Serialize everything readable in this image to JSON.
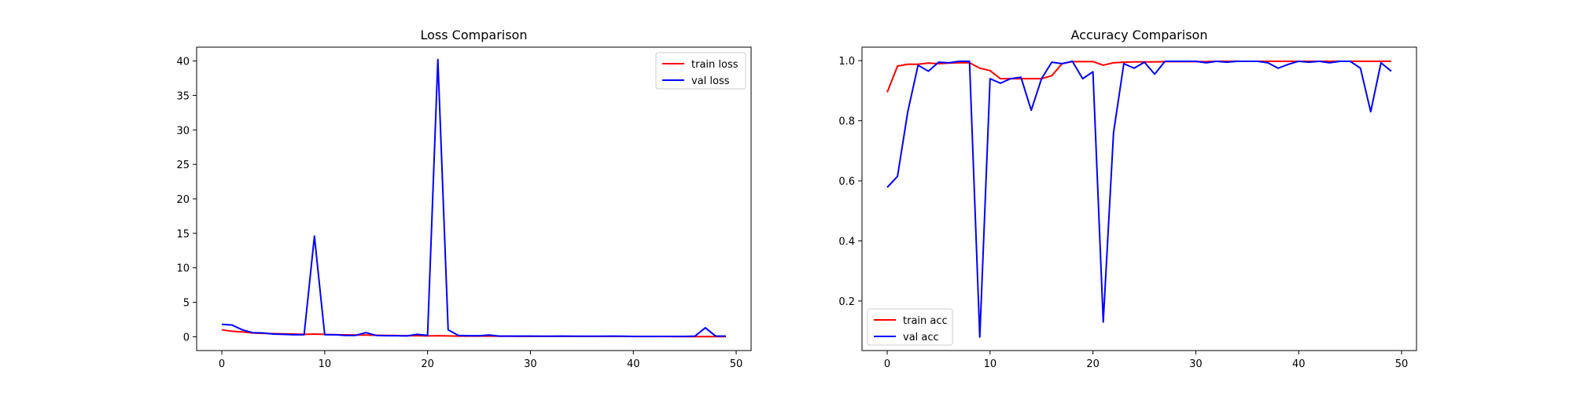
{
  "colors": {
    "train": "#ff0000",
    "val": "#0000ff",
    "axis": "#000000",
    "legend_border": "#cccccc"
  },
  "chart_data": [
    {
      "type": "line",
      "title": "Loss Comparison",
      "xlabel": "",
      "ylabel": "",
      "xlim": [
        -2.45,
        51.45
      ],
      "ylim": [
        -2.0,
        42.0
      ],
      "xticks": [
        0,
        10,
        20,
        30,
        40,
        50
      ],
      "yticks": [
        0,
        5,
        10,
        15,
        20,
        25,
        30,
        35,
        40
      ],
      "grid": false,
      "legend": "top-right",
      "x": [
        0,
        1,
        2,
        3,
        4,
        5,
        6,
        7,
        8,
        9,
        10,
        11,
        12,
        13,
        14,
        15,
        16,
        17,
        18,
        19,
        20,
        21,
        22,
        23,
        24,
        25,
        26,
        27,
        28,
        29,
        30,
        31,
        32,
        33,
        34,
        35,
        36,
        37,
        38,
        39,
        40,
        41,
        42,
        43,
        44,
        45,
        46,
        47,
        48,
        49
      ],
      "series": [
        {
          "name": "train loss",
          "color": "#ff0000",
          "values": [
            1.0,
            0.8,
            0.7,
            0.55,
            0.5,
            0.45,
            0.42,
            0.4,
            0.35,
            0.4,
            0.35,
            0.3,
            0.28,
            0.25,
            0.25,
            0.22,
            0.2,
            0.18,
            0.15,
            0.15,
            0.12,
            0.15,
            0.12,
            0.1,
            0.1,
            0.1,
            0.1,
            0.08,
            0.08,
            0.07,
            0.07,
            0.07,
            0.06,
            0.06,
            0.06,
            0.05,
            0.05,
            0.05,
            0.05,
            0.05,
            0.04,
            0.04,
            0.04,
            0.04,
            0.03,
            0.03,
            0.03,
            0.03,
            0.03,
            0.03
          ]
        },
        {
          "name": "val loss",
          "color": "#0000ff",
          "values": [
            1.8,
            1.7,
            1.0,
            0.6,
            0.55,
            0.4,
            0.35,
            0.3,
            0.3,
            14.6,
            0.3,
            0.3,
            0.2,
            0.2,
            0.6,
            0.2,
            0.15,
            0.15,
            0.12,
            0.35,
            0.2,
            40.2,
            1.0,
            0.2,
            0.15,
            0.15,
            0.25,
            0.1,
            0.1,
            0.1,
            0.1,
            0.08,
            0.08,
            0.1,
            0.08,
            0.08,
            0.08,
            0.08,
            0.1,
            0.08,
            0.05,
            0.05,
            0.05,
            0.05,
            0.05,
            0.05,
            0.1,
            1.3,
            0.1,
            0.1
          ]
        }
      ]
    },
    {
      "type": "line",
      "title": "Accuracy Comparison",
      "xlabel": "",
      "ylabel": "",
      "xlim": [
        -2.45,
        51.45
      ],
      "ylim": [
        0.035,
        1.045
      ],
      "xticks": [
        0,
        10,
        20,
        30,
        40,
        50
      ],
      "yticks": [
        0.2,
        0.4,
        0.6,
        0.8,
        1.0
      ],
      "ytick_labels": [
        "0.2",
        "0.4",
        "0.6",
        "0.8",
        "1.0"
      ],
      "grid": false,
      "legend": "bottom-left",
      "x": [
        0,
        1,
        2,
        3,
        4,
        5,
        6,
        7,
        8,
        9,
        10,
        11,
        12,
        13,
        14,
        15,
        16,
        17,
        18,
        19,
        20,
        21,
        22,
        23,
        24,
        25,
        26,
        27,
        28,
        29,
        30,
        31,
        32,
        33,
        34,
        35,
        36,
        37,
        38,
        39,
        40,
        41,
        42,
        43,
        44,
        45,
        46,
        47,
        48,
        49
      ],
      "series": [
        {
          "name": "train acc",
          "color": "#ff0000",
          "values": [
            0.895,
            0.982,
            0.988,
            0.988,
            0.992,
            0.99,
            0.992,
            0.993,
            0.993,
            0.975,
            0.967,
            0.94,
            0.94,
            0.94,
            0.94,
            0.94,
            0.95,
            0.99,
            0.997,
            0.997,
            0.997,
            0.985,
            0.993,
            0.995,
            0.996,
            0.996,
            0.996,
            0.997,
            0.997,
            0.997,
            0.997,
            0.997,
            0.998,
            0.998,
            0.998,
            0.998,
            0.998,
            0.998,
            0.998,
            0.998,
            0.998,
            0.998,
            0.998,
            0.998,
            0.998,
            0.998,
            0.998,
            0.998,
            0.998,
            0.998
          ]
        },
        {
          "name": "val acc",
          "color": "#0000ff",
          "values": [
            0.578,
            0.615,
            0.83,
            0.985,
            0.965,
            0.995,
            0.993,
            0.998,
            0.998,
            0.08,
            0.94,
            0.925,
            0.94,
            0.945,
            0.835,
            0.94,
            0.995,
            0.99,
            0.998,
            0.94,
            0.963,
            0.13,
            0.76,
            0.99,
            0.975,
            0.995,
            0.955,
            0.998,
            0.998,
            0.998,
            0.998,
            0.993,
            0.998,
            0.995,
            0.998,
            0.998,
            0.998,
            0.993,
            0.975,
            0.988,
            0.998,
            0.995,
            0.998,
            0.993,
            0.998,
            0.998,
            0.975,
            0.83,
            0.993,
            0.965
          ]
        }
      ]
    }
  ]
}
